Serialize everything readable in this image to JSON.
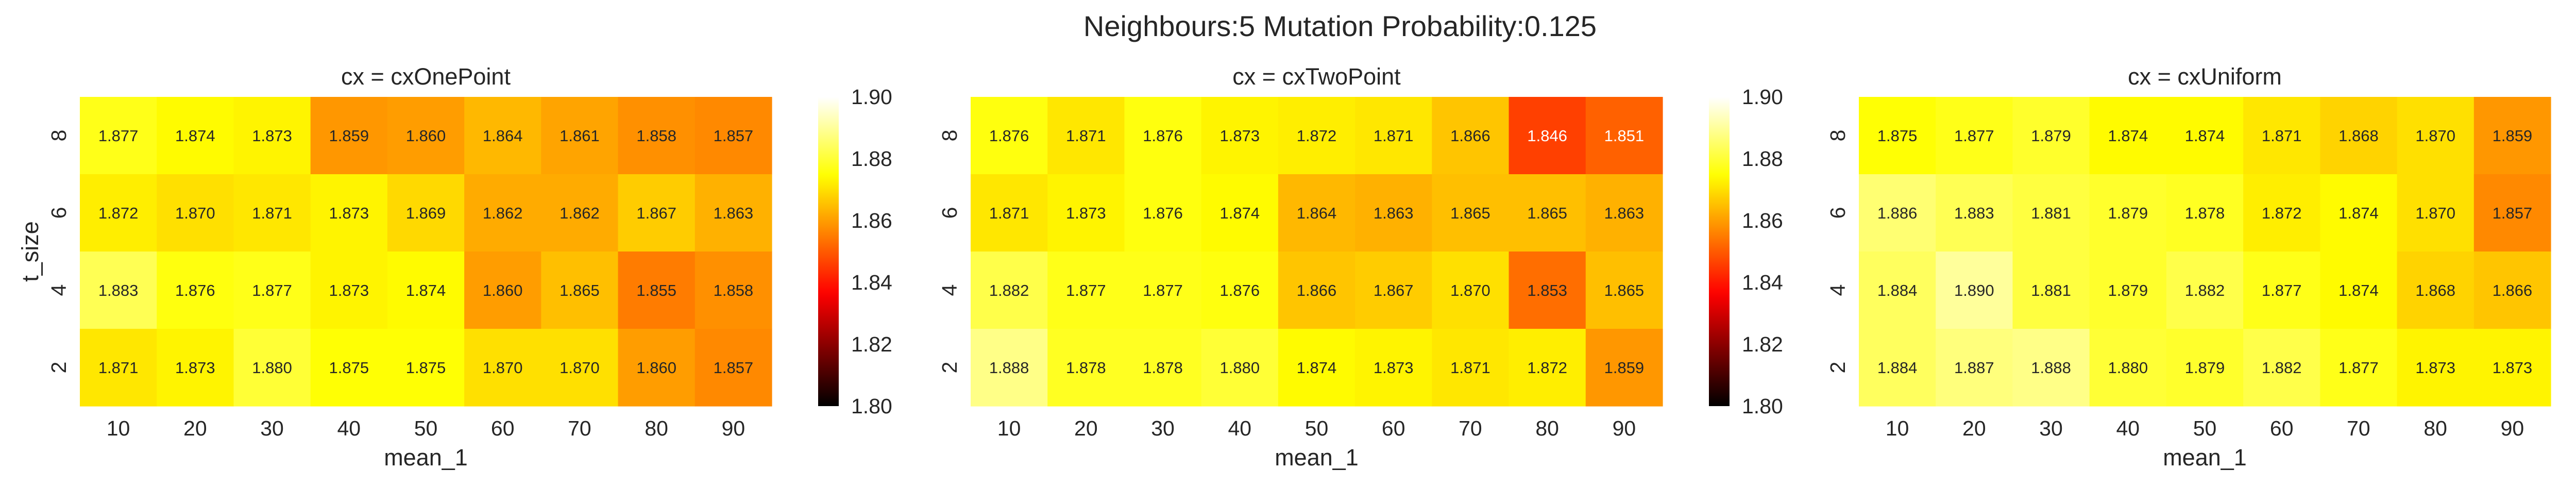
{
  "suptitle": "Neighbours:5 Mutation Probability:0.125",
  "chart_data": {
    "type": "heatmap",
    "colormap": "hot",
    "vmin": 1.8,
    "vmax": 1.9,
    "colorbar_ticks": [
      "1.80",
      "1.82",
      "1.84",
      "1.86",
      "1.88",
      "1.90"
    ],
    "x_categories": [
      "10",
      "20",
      "30",
      "40",
      "50",
      "60",
      "70",
      "80",
      "90"
    ],
    "y_categories": [
      "8",
      "6",
      "4",
      "2"
    ],
    "xlabel": "mean_1",
    "ylabel": "t_size",
    "panels": [
      {
        "title": "cx = cxOnePoint",
        "values": [
          [
            1.877,
            1.874,
            1.873,
            1.859,
            1.86,
            1.864,
            1.861,
            1.858,
            1.857
          ],
          [
            1.872,
            1.87,
            1.871,
            1.873,
            1.869,
            1.862,
            1.862,
            1.867,
            1.863
          ],
          [
            1.883,
            1.876,
            1.877,
            1.873,
            1.874,
            1.86,
            1.865,
            1.855,
            1.858
          ],
          [
            1.871,
            1.873,
            1.88,
            1.875,
            1.875,
            1.87,
            1.87,
            1.86,
            1.857
          ]
        ]
      },
      {
        "title": "cx = cxTwoPoint",
        "values": [
          [
            1.876,
            1.871,
            1.876,
            1.873,
            1.872,
            1.871,
            1.866,
            1.846,
            1.851
          ],
          [
            1.871,
            1.873,
            1.876,
            1.874,
            1.864,
            1.863,
            1.865,
            1.865,
            1.863
          ],
          [
            1.882,
            1.877,
            1.877,
            1.876,
            1.866,
            1.867,
            1.87,
            1.853,
            1.865
          ],
          [
            1.888,
            1.878,
            1.878,
            1.88,
            1.874,
            1.873,
            1.871,
            1.872,
            1.859
          ]
        ]
      },
      {
        "title": "cx = cxUniform",
        "values": [
          [
            1.875,
            1.877,
            1.879,
            1.874,
            1.874,
            1.871,
            1.868,
            1.87,
            1.859
          ],
          [
            1.886,
            1.883,
            1.881,
            1.879,
            1.878,
            1.872,
            1.874,
            1.87,
            1.857
          ],
          [
            1.884,
            1.89,
            1.881,
            1.879,
            1.882,
            1.877,
            1.874,
            1.868,
            1.866
          ],
          [
            1.884,
            1.887,
            1.888,
            1.88,
            1.879,
            1.882,
            1.877,
            1.873,
            1.873
          ]
        ]
      }
    ]
  }
}
